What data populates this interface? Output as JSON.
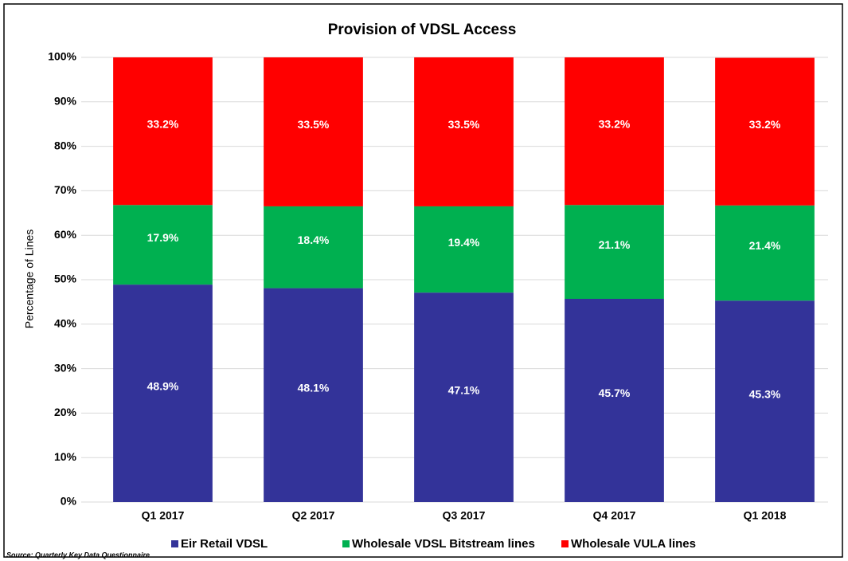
{
  "chart_data": {
    "type": "stacked_bar",
    "title": "Provision of VDSL Access",
    "y_label": "Percentage of Lines",
    "source": "Source:  Quarterly Key Data Questionnaire",
    "categories": [
      "Q1 2017",
      "Q2 2017",
      "Q3 2017",
      "Q4 2017",
      "Q1 2018"
    ],
    "series": [
      {
        "name": "Eir Retail VDSL",
        "color": "#333399",
        "values": [
          48.9,
          48.1,
          47.1,
          45.7,
          45.3
        ],
        "value_labels": [
          "48.9%",
          "48.1%",
          "47.1%",
          "45.7%",
          "45.3%"
        ]
      },
      {
        "name": "Wholesale VDSL Bitstream lines",
        "color": "#00b050",
        "values": [
          17.9,
          18.4,
          19.4,
          21.1,
          21.4
        ],
        "value_labels": [
          "17.9%",
          "18.4%",
          "19.4%",
          "21.1%",
          "21.4%"
        ]
      },
      {
        "name": "Wholesale VULA lines",
        "color": "#ff0000",
        "values": [
          33.2,
          33.5,
          33.5,
          33.2,
          33.2
        ],
        "value_labels": [
          "33.2%",
          "33.5%",
          "33.5%",
          "33.2%",
          "33.2%"
        ]
      }
    ],
    "ylim": [
      0,
      100
    ],
    "yticks": [
      {
        "value": 0,
        "label": "0%"
      },
      {
        "value": 10,
        "label": "10%"
      },
      {
        "value": 20,
        "label": "20%"
      },
      {
        "value": 30,
        "label": "30%"
      },
      {
        "value": 40,
        "label": "40%"
      },
      {
        "value": 50,
        "label": "50%"
      },
      {
        "value": 60,
        "label": "60%"
      },
      {
        "value": 70,
        "label": "70%"
      },
      {
        "value": 80,
        "label": "80%"
      },
      {
        "value": 90,
        "label": "90%"
      },
      {
        "value": 100,
        "label": "100%"
      }
    ],
    "grid": true,
    "legend": "bottom"
  }
}
